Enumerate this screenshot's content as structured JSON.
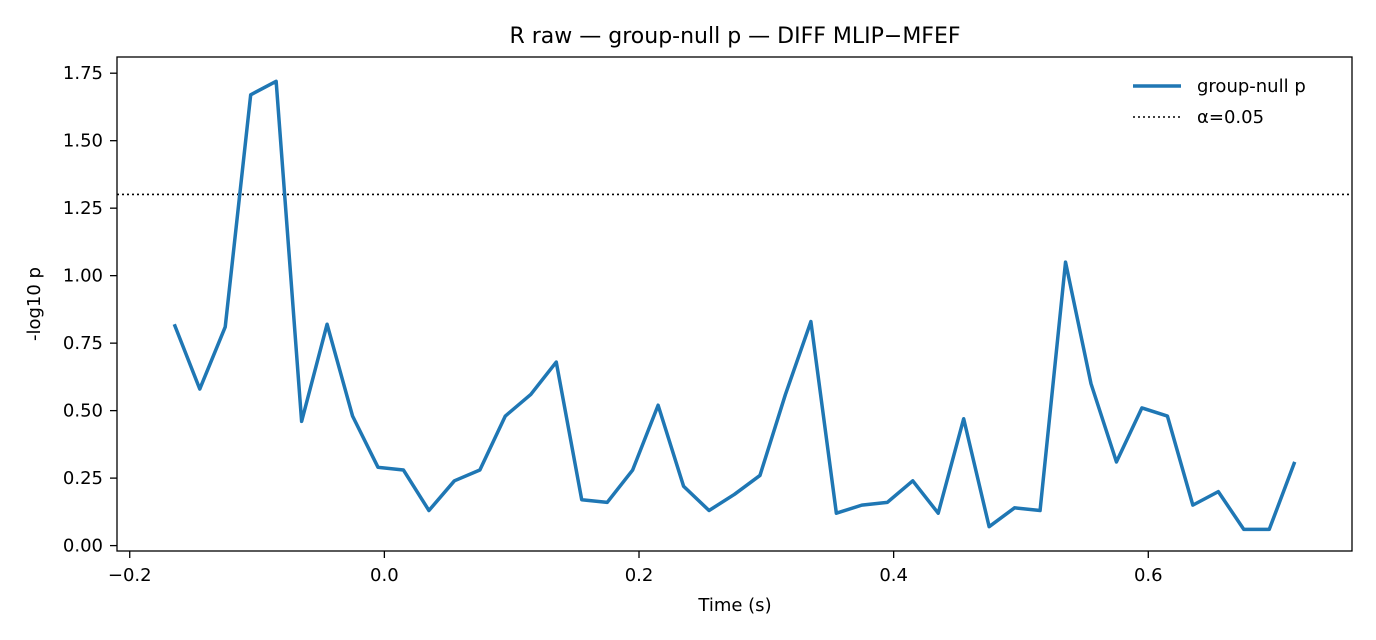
{
  "chart_data": {
    "type": "line",
    "title": "R raw — group-null p — DIFF MLIP−MFEF",
    "xlabel": "Time (s)",
    "ylabel": "-log10 p",
    "xlim": [
      -0.21,
      0.76
    ],
    "ylim": [
      -0.02,
      1.81
    ],
    "xticks": [
      -0.2,
      0.0,
      0.2,
      0.4,
      0.6
    ],
    "xtick_labels": [
      "−0.2",
      "0.0",
      "0.2",
      "0.4",
      "0.6"
    ],
    "yticks": [
      0.0,
      0.25,
      0.5,
      0.75,
      1.0,
      1.25,
      1.5,
      1.75
    ],
    "ytick_labels": [
      "0.00",
      "0.25",
      "0.50",
      "0.75",
      "1.00",
      "1.25",
      "1.50",
      "1.75"
    ],
    "grid": false,
    "legend_position": "top-right",
    "series": [
      {
        "name": "group-null p",
        "color": "#1f77b4",
        "style": "solid",
        "x": [
          -0.165,
          -0.145,
          -0.125,
          -0.105,
          -0.085,
          -0.065,
          -0.045,
          -0.025,
          -0.005,
          0.015,
          0.035,
          0.055,
          0.075,
          0.095,
          0.115,
          0.135,
          0.155,
          0.175,
          0.195,
          0.215,
          0.235,
          0.255,
          0.275,
          0.295,
          0.315,
          0.335,
          0.355,
          0.375,
          0.395,
          0.415,
          0.435,
          0.455,
          0.475,
          0.495,
          0.515,
          0.535,
          0.555,
          0.575,
          0.595,
          0.615,
          0.635,
          0.655,
          0.675,
          0.695,
          0.715
        ],
        "y": [
          0.82,
          0.58,
          0.81,
          1.67,
          1.72,
          0.46,
          0.82,
          0.48,
          0.29,
          0.28,
          0.13,
          0.24,
          0.28,
          0.48,
          0.56,
          0.68,
          0.17,
          0.16,
          0.28,
          0.52,
          0.22,
          0.13,
          0.19,
          0.26,
          0.56,
          0.83,
          0.12,
          0.15,
          0.16,
          0.24,
          0.12,
          0.47,
          0.07,
          0.14,
          0.13,
          1.05,
          0.6,
          0.31,
          0.51,
          0.48,
          0.15,
          0.2,
          0.06,
          0.06,
          0.31
        ]
      }
    ],
    "reference_lines": [
      {
        "name": "α=0.05",
        "orientation": "horizontal",
        "y": 1.30103,
        "color": "#000000",
        "style": "dotted"
      }
    ]
  }
}
